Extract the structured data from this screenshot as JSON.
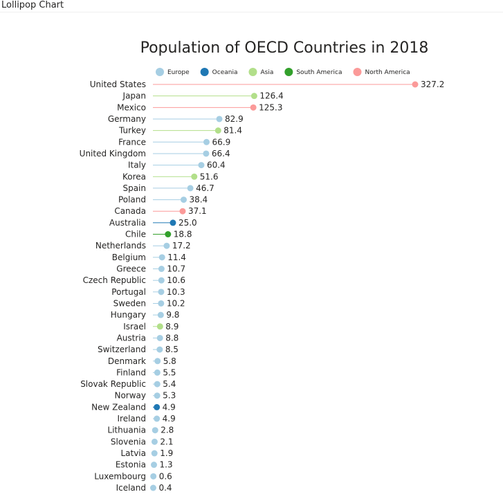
{
  "visual": {
    "title": "Lollipop Chart"
  },
  "chart_data": {
    "type": "lollipop",
    "title": "Population of OECD Countries in 2018",
    "xlabel": "",
    "ylabel": "",
    "xlim": [
      0,
      327.2
    ],
    "legend_position": "top",
    "series": [
      {
        "name": "Europe",
        "color": "#a6cee3"
      },
      {
        "name": "Oceania",
        "color": "#1f78b4"
      },
      {
        "name": "Asia",
        "color": "#b2df8a"
      },
      {
        "name": "South America",
        "color": "#33a02c"
      },
      {
        "name": "North America",
        "color": "#fb9a99"
      }
    ],
    "points": [
      {
        "country": "United States",
        "value": 327.2,
        "region": "North America"
      },
      {
        "country": "Japan",
        "value": 126.4,
        "region": "Asia"
      },
      {
        "country": "Mexico",
        "value": 125.3,
        "region": "North America"
      },
      {
        "country": "Germany",
        "value": 82.9,
        "region": "Europe"
      },
      {
        "country": "Turkey",
        "value": 81.4,
        "region": "Asia"
      },
      {
        "country": "France",
        "value": 66.9,
        "region": "Europe"
      },
      {
        "country": "United Kingdom",
        "value": 66.4,
        "region": "Europe"
      },
      {
        "country": "Italy",
        "value": 60.4,
        "region": "Europe"
      },
      {
        "country": "Korea",
        "value": 51.6,
        "region": "Asia"
      },
      {
        "country": "Spain",
        "value": 46.7,
        "region": "Europe"
      },
      {
        "country": "Poland",
        "value": 38.4,
        "region": "Europe"
      },
      {
        "country": "Canada",
        "value": 37.1,
        "region": "North America"
      },
      {
        "country": "Australia",
        "value": 25.0,
        "region": "Oceania"
      },
      {
        "country": "Chile",
        "value": 18.8,
        "region": "South America"
      },
      {
        "country": "Netherlands",
        "value": 17.2,
        "region": "Europe"
      },
      {
        "country": "Belgium",
        "value": 11.4,
        "region": "Europe"
      },
      {
        "country": "Greece",
        "value": 10.7,
        "region": "Europe"
      },
      {
        "country": "Czech Republic",
        "value": 10.6,
        "region": "Europe"
      },
      {
        "country": "Portugal",
        "value": 10.3,
        "region": "Europe"
      },
      {
        "country": "Sweden",
        "value": 10.2,
        "region": "Europe"
      },
      {
        "country": "Hungary",
        "value": 9.8,
        "region": "Europe"
      },
      {
        "country": "Israel",
        "value": 8.9,
        "region": "Asia"
      },
      {
        "country": "Austria",
        "value": 8.8,
        "region": "Europe"
      },
      {
        "country": "Switzerland",
        "value": 8.5,
        "region": "Europe"
      },
      {
        "country": "Denmark",
        "value": 5.8,
        "region": "Europe"
      },
      {
        "country": "Finland",
        "value": 5.5,
        "region": "Europe"
      },
      {
        "country": "Slovak Republic",
        "value": 5.4,
        "region": "Europe"
      },
      {
        "country": "Norway",
        "value": 5.3,
        "region": "Europe"
      },
      {
        "country": "New Zealand",
        "value": 4.9,
        "region": "Oceania"
      },
      {
        "country": "Ireland",
        "value": 4.9,
        "region": "Europe"
      },
      {
        "country": "Lithuania",
        "value": 2.8,
        "region": "Europe"
      },
      {
        "country": "Slovenia",
        "value": 2.1,
        "region": "Europe"
      },
      {
        "country": "Latvia",
        "value": 1.9,
        "region": "Europe"
      },
      {
        "country": "Estonia",
        "value": 1.3,
        "region": "Europe"
      },
      {
        "country": "Luxembourg",
        "value": 0.6,
        "region": "Europe"
      },
      {
        "country": "Iceland",
        "value": 0.4,
        "region": "Europe"
      }
    ]
  }
}
